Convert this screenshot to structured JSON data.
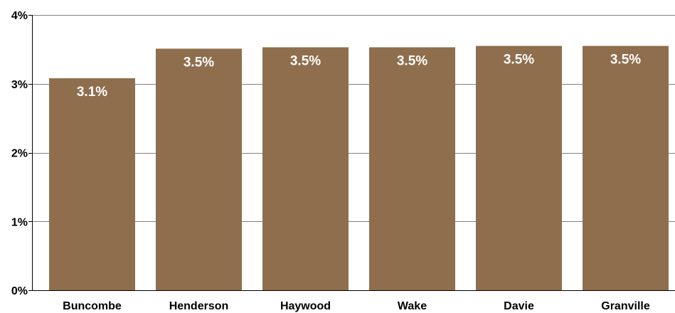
{
  "chart_data": {
    "type": "bar",
    "categories": [
      "Buncombe",
      "Henderson",
      "Haywood",
      "Wake",
      "Davie",
      "Granville"
    ],
    "values": [
      3.08,
      3.51,
      3.53,
      3.53,
      3.55,
      3.55
    ],
    "data_labels": [
      "3.1%",
      "3.5%",
      "3.5%",
      "3.5%",
      "3.5%",
      "3.5%"
    ],
    "ylim": [
      0,
      4
    ],
    "yticks": [
      0,
      1,
      2,
      3,
      4
    ],
    "ytick_labels": [
      "0%",
      "1%",
      "2%",
      "3%",
      "4%"
    ],
    "grid": true,
    "bar_color": "#8f6e4d",
    "title": "",
    "xlabel": "",
    "ylabel": ""
  }
}
